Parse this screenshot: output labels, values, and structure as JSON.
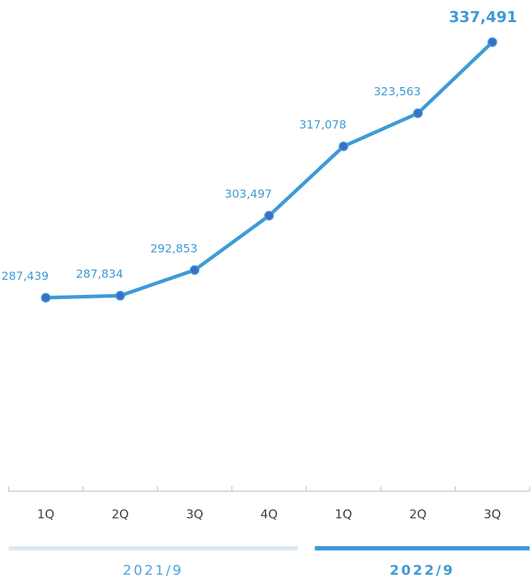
{
  "colors": {
    "line": "#3e9bd6",
    "marker": "#3a6fc9",
    "label": "#3e9bd6",
    "axis": "#bfbfbf",
    "tick_text": "#404040",
    "period_bar_prev": "#dde8f3",
    "period_bar_curr": "#3e9bd6",
    "period_text_prev": "#4fa3d9",
    "period_text_curr": "#3e9bd6"
  },
  "chart_data": {
    "type": "line",
    "categories": [
      "1Q",
      "2Q",
      "3Q",
      "4Q",
      "1Q",
      "2Q",
      "3Q"
    ],
    "series": [
      {
        "values": [
          287439,
          287834,
          292853,
          303497,
          317078,
          323563,
          337491
        ],
        "labels": [
          "287,439",
          "287,834",
          "292,853",
          "303,497",
          "317,078",
          "323,563",
          "337,491"
        ],
        "highlight_last": true
      }
    ],
    "groups": [
      {
        "label": "2021/9",
        "categories": [
          0,
          1,
          2,
          3
        ],
        "emphasis": false
      },
      {
        "label": "2022/9",
        "categories": [
          4,
          5,
          6
        ],
        "emphasis": true
      }
    ],
    "ylim": [
      250000,
      340000
    ],
    "grid": false,
    "legend": "none"
  }
}
